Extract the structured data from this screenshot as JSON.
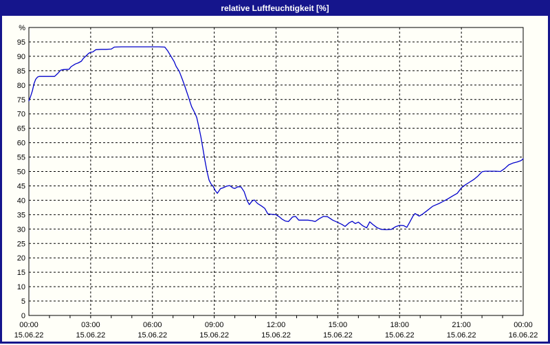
{
  "window": {
    "title": "relative Luftfeuchtigkeit [%]"
  },
  "colors": {
    "titlebar_bg": "#15158C",
    "titlebar_text": "#FFFFFF",
    "border": "#15158C",
    "content_bg": "#FFFFF8",
    "grid": "#000000",
    "axis_frame": "#000000",
    "tick_label": "#000000",
    "series_line": "#0000CC"
  },
  "chart_data": {
    "type": "line",
    "title": "relative Luftfeuchtigkeit [%]",
    "y_unit_label": "%",
    "ylim": [
      0,
      100
    ],
    "y_ticks": [
      0,
      5,
      10,
      15,
      20,
      25,
      30,
      35,
      40,
      45,
      50,
      55,
      60,
      65,
      70,
      75,
      80,
      85,
      90,
      95
    ],
    "grid": "dashed",
    "legend": "none",
    "x_axis": {
      "unit": "hours",
      "range_hours": [
        0,
        24
      ],
      "minor_tick_every_hours": 1,
      "major_ticks": [
        {
          "hour": 0,
          "time": "00:00",
          "date": "15.06.22"
        },
        {
          "hour": 3,
          "time": "03:00",
          "date": "15.06.22"
        },
        {
          "hour": 6,
          "time": "06:00",
          "date": "15.06.22"
        },
        {
          "hour": 9,
          "time": "09:00",
          "date": "15.06.22"
        },
        {
          "hour": 12,
          "time": "12:00",
          "date": "15.06.22"
        },
        {
          "hour": 15,
          "time": "15:00",
          "date": "15.06.22"
        },
        {
          "hour": 18,
          "time": "18:00",
          "date": "15.06.22"
        },
        {
          "hour": 21,
          "time": "21:00",
          "date": "15.06.22"
        },
        {
          "hour": 24,
          "time": "00:00",
          "date": "16.06.22"
        }
      ]
    },
    "series": [
      {
        "name": "relative Luftfeuchtigkeit",
        "color": "#0000CC",
        "points_hours_percent": [
          [
            0,
            74.5
          ],
          [
            0.08,
            76
          ],
          [
            0.17,
            78
          ],
          [
            0.25,
            80.5
          ],
          [
            0.33,
            82
          ],
          [
            0.42,
            82.8
          ],
          [
            0.5,
            83
          ],
          [
            0.75,
            83
          ],
          [
            1,
            83
          ],
          [
            1.25,
            83
          ],
          [
            1.4,
            84
          ],
          [
            1.55,
            85.2
          ],
          [
            1.7,
            85.4
          ],
          [
            1.95,
            85.5
          ],
          [
            2.05,
            86.4
          ],
          [
            2.25,
            87.3
          ],
          [
            2.4,
            87.7
          ],
          [
            2.55,
            88.3
          ],
          [
            2.65,
            89.3
          ],
          [
            2.8,
            90.3
          ],
          [
            2.9,
            91
          ],
          [
            3,
            91.4
          ],
          [
            3.1,
            91.5
          ],
          [
            3.25,
            92.3
          ],
          [
            3.5,
            92.4
          ],
          [
            3.75,
            92.4
          ],
          [
            4,
            92.5
          ],
          [
            4.15,
            93.2
          ],
          [
            4.5,
            93.3
          ],
          [
            5,
            93.3
          ],
          [
            5.5,
            93.3
          ],
          [
            6,
            93.3
          ],
          [
            6.3,
            93.3
          ],
          [
            6.6,
            93.2
          ],
          [
            6.75,
            91.8
          ],
          [
            6.9,
            90
          ],
          [
            7.05,
            88.2
          ],
          [
            7.15,
            86.5
          ],
          [
            7.3,
            84.8
          ],
          [
            7.45,
            82
          ],
          [
            7.6,
            79
          ],
          [
            7.75,
            75.8
          ],
          [
            7.9,
            72.5
          ],
          [
            8.05,
            70.4
          ],
          [
            8.15,
            68.7
          ],
          [
            8.25,
            65.5
          ],
          [
            8.35,
            62
          ],
          [
            8.45,
            58
          ],
          [
            8.55,
            53.8
          ],
          [
            8.65,
            50
          ],
          [
            8.75,
            47
          ],
          [
            8.85,
            45.6
          ],
          [
            8.95,
            44.8
          ],
          [
            9.05,
            43.4
          ],
          [
            9.15,
            42.4
          ],
          [
            9.3,
            44
          ],
          [
            9.45,
            44.4
          ],
          [
            9.6,
            44.9
          ],
          [
            9.75,
            45.1
          ],
          [
            9.9,
            44.3
          ],
          [
            10,
            44.1
          ],
          [
            10.15,
            44.7
          ],
          [
            10.3,
            44.6
          ],
          [
            10.45,
            43
          ],
          [
            10.6,
            39.8
          ],
          [
            10.7,
            38.5
          ],
          [
            10.85,
            39.8
          ],
          [
            10.95,
            40.1
          ],
          [
            11.1,
            38.9
          ],
          [
            11.3,
            38
          ],
          [
            11.45,
            37.2
          ],
          [
            11.6,
            35.3
          ],
          [
            11.8,
            35.1
          ],
          [
            12,
            35
          ],
          [
            12.15,
            34.3
          ],
          [
            12.3,
            33.4
          ],
          [
            12.45,
            32.8
          ],
          [
            12.6,
            32.6
          ],
          [
            12.8,
            34.2
          ],
          [
            12.95,
            34.4
          ],
          [
            13.1,
            33.1
          ],
          [
            13.3,
            33.1
          ],
          [
            13.55,
            33.1
          ],
          [
            13.75,
            32.9
          ],
          [
            13.9,
            32.6
          ],
          [
            14.1,
            33.6
          ],
          [
            14.3,
            34.4
          ],
          [
            14.5,
            34.3
          ],
          [
            14.75,
            33.1
          ],
          [
            15,
            32.3
          ],
          [
            15.2,
            31.6
          ],
          [
            15.35,
            30.9
          ],
          [
            15.55,
            32.2
          ],
          [
            15.7,
            32.7
          ],
          [
            15.85,
            31.9
          ],
          [
            16,
            32.4
          ],
          [
            16.2,
            31.2
          ],
          [
            16.4,
            30.4
          ],
          [
            16.55,
            32.5
          ],
          [
            16.7,
            31.6
          ],
          [
            16.9,
            30.5
          ],
          [
            17.1,
            29.9
          ],
          [
            17.35,
            29.8
          ],
          [
            17.6,
            29.9
          ],
          [
            17.8,
            30.8
          ],
          [
            18,
            31.3
          ],
          [
            18.2,
            31.2
          ],
          [
            18.35,
            30.6
          ],
          [
            18.5,
            32.5
          ],
          [
            18.65,
            34.5
          ],
          [
            18.75,
            35.4
          ],
          [
            18.95,
            34.5
          ],
          [
            19.1,
            35.1
          ],
          [
            19.3,
            36.2
          ],
          [
            19.6,
            37.9
          ],
          [
            19.95,
            39
          ],
          [
            20.3,
            40.3
          ],
          [
            20.6,
            41.6
          ],
          [
            20.8,
            42.4
          ],
          [
            21,
            44.3
          ],
          [
            21.2,
            45.4
          ],
          [
            21.4,
            46.3
          ],
          [
            21.6,
            47.2
          ],
          [
            21.8,
            48.4
          ],
          [
            22,
            49.9
          ],
          [
            22.15,
            50.1
          ],
          [
            22.4,
            50.1
          ],
          [
            22.65,
            50.1
          ],
          [
            22.9,
            50
          ],
          [
            23.1,
            51
          ],
          [
            23.3,
            52.3
          ],
          [
            23.5,
            52.9
          ],
          [
            23.7,
            53.3
          ],
          [
            23.9,
            53.8
          ],
          [
            24,
            54.4
          ]
        ]
      }
    ]
  }
}
